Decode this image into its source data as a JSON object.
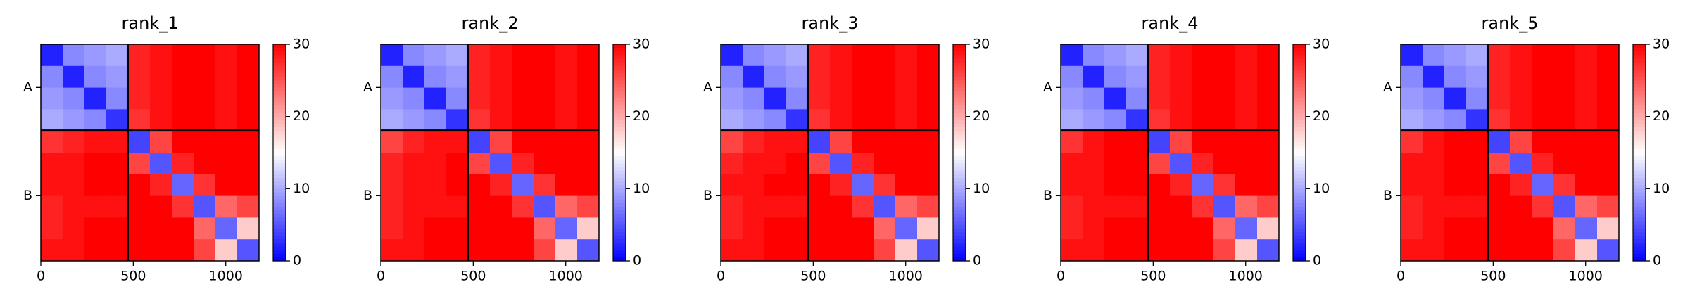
{
  "chart_data": [
    {
      "type": "heatmap",
      "title": "rank_1",
      "bins": [
        0,
        118,
        236,
        354,
        472,
        590,
        708,
        826,
        944,
        1062,
        1180
      ],
      "xlim": [
        0,
        1180
      ],
      "ylim": [
        1180,
        0
      ],
      "xticks": [
        0,
        500,
        1000
      ],
      "yticks": [
        {
          "value": 235,
          "label": "A"
        },
        {
          "value": 825,
          "label": "B"
        }
      ],
      "chain_breaks": [
        470
      ],
      "colormap": "bwr",
      "clim": [
        0,
        30
      ],
      "cticks": [
        0,
        10,
        20,
        30
      ],
      "values": [
        [
          2,
          8,
          9,
          10,
          28,
          29,
          30,
          30,
          29,
          30
        ],
        [
          8,
          2,
          8,
          9,
          28,
          29,
          30,
          30,
          29,
          30
        ],
        [
          9,
          8,
          2,
          8,
          28,
          29,
          30,
          30,
          29,
          30
        ],
        [
          10,
          9,
          8,
          3,
          27,
          29,
          30,
          30,
          29,
          30
        ],
        [
          27,
          28,
          29,
          29,
          4,
          26,
          30,
          30,
          30,
          30
        ],
        [
          29,
          29,
          30,
          30,
          26,
          5,
          28,
          30,
          30,
          30
        ],
        [
          29,
          29,
          30,
          30,
          30,
          28,
          6,
          27,
          30,
          30
        ],
        [
          28,
          29,
          29,
          29,
          30,
          30,
          27,
          5,
          24,
          26
        ],
        [
          28,
          29,
          30,
          30,
          30,
          30,
          30,
          24,
          6,
          18
        ],
        [
          29,
          29,
          30,
          30,
          30,
          30,
          30,
          26,
          18,
          5
        ]
      ]
    },
    {
      "type": "heatmap",
      "title": "rank_2",
      "bins": [
        0,
        118,
        236,
        354,
        472,
        590,
        708,
        826,
        944,
        1062,
        1180
      ],
      "xlim": [
        0,
        1180
      ],
      "ylim": [
        1180,
        0
      ],
      "xticks": [
        0,
        500,
        1000
      ],
      "yticks": [
        {
          "value": 235,
          "label": "A"
        },
        {
          "value": 825,
          "label": "B"
        }
      ],
      "chain_breaks": [
        470
      ],
      "colormap": "bwr",
      "clim": [
        0,
        30
      ],
      "cticks": [
        0,
        10,
        20,
        30
      ],
      "values": [
        [
          2,
          8,
          9,
          10,
          28,
          29,
          30,
          30,
          29,
          30
        ],
        [
          8,
          2,
          8,
          9,
          28,
          29,
          30,
          30,
          29,
          30
        ],
        [
          9,
          8,
          2,
          8,
          28,
          29,
          30,
          30,
          29,
          30
        ],
        [
          10,
          9,
          8,
          3,
          27,
          29,
          30,
          30,
          29,
          30
        ],
        [
          26,
          28,
          29,
          29,
          4,
          26,
          30,
          30,
          30,
          30
        ],
        [
          28,
          29,
          29,
          30,
          26,
          5,
          28,
          30,
          30,
          30
        ],
        [
          28,
          29,
          29,
          30,
          30,
          28,
          6,
          27,
          30,
          30
        ],
        [
          28,
          29,
          29,
          29,
          30,
          30,
          27,
          5,
          24,
          26
        ],
        [
          28,
          29,
          30,
          30,
          30,
          30,
          30,
          24,
          6,
          18
        ],
        [
          29,
          29,
          30,
          30,
          30,
          30,
          30,
          26,
          18,
          5
        ]
      ]
    },
    {
      "type": "heatmap",
      "title": "rank_3",
      "bins": [
        0,
        118,
        236,
        354,
        472,
        590,
        708,
        826,
        944,
        1062,
        1180
      ],
      "xlim": [
        0,
        1180
      ],
      "ylim": [
        1180,
        0
      ],
      "xticks": [
        0,
        500,
        1000
      ],
      "yticks": [
        {
          "value": 235,
          "label": "A"
        },
        {
          "value": 825,
          "label": "B"
        }
      ],
      "chain_breaks": [
        470
      ],
      "colormap": "bwr",
      "clim": [
        0,
        30
      ],
      "cticks": [
        0,
        10,
        20,
        30
      ],
      "values": [
        [
          2,
          8,
          9,
          10,
          28,
          29,
          30,
          30,
          29,
          30
        ],
        [
          8,
          2,
          8,
          9,
          28,
          29,
          30,
          30,
          29,
          30
        ],
        [
          9,
          8,
          2,
          8,
          28,
          29,
          30,
          30,
          29,
          30
        ],
        [
          10,
          9,
          8,
          3,
          27,
          29,
          30,
          30,
          29,
          30
        ],
        [
          26,
          28,
          29,
          29,
          4,
          26,
          30,
          30,
          30,
          30
        ],
        [
          28,
          29,
          29,
          30,
          26,
          5,
          28,
          30,
          30,
          30
        ],
        [
          29,
          29,
          30,
          30,
          30,
          28,
          6,
          27,
          30,
          30
        ],
        [
          28,
          29,
          29,
          29,
          30,
          30,
          27,
          5,
          24,
          26
        ],
        [
          28,
          29,
          30,
          30,
          30,
          30,
          30,
          24,
          6,
          18
        ],
        [
          29,
          29,
          30,
          30,
          30,
          30,
          30,
          26,
          18,
          5
        ]
      ]
    },
    {
      "type": "heatmap",
      "title": "rank_4",
      "bins": [
        0,
        118,
        236,
        354,
        472,
        590,
        708,
        826,
        944,
        1062,
        1180
      ],
      "xlim": [
        0,
        1180
      ],
      "ylim": [
        1180,
        0
      ],
      "xticks": [
        0,
        500,
        1000
      ],
      "yticks": [
        {
          "value": 235,
          "label": "A"
        },
        {
          "value": 825,
          "label": "B"
        }
      ],
      "chain_breaks": [
        470
      ],
      "colormap": "bwr",
      "clim": [
        0,
        30
      ],
      "cticks": [
        0,
        10,
        20,
        30
      ],
      "values": [
        [
          2,
          8,
          9,
          10,
          28,
          29,
          30,
          30,
          29,
          30
        ],
        [
          8,
          2,
          8,
          9,
          28,
          29,
          30,
          30,
          29,
          30
        ],
        [
          9,
          8,
          2,
          8,
          28,
          29,
          30,
          30,
          29,
          30
        ],
        [
          10,
          9,
          8,
          3,
          27,
          29,
          30,
          30,
          29,
          30
        ],
        [
          27,
          29,
          30,
          30,
          4,
          26,
          30,
          30,
          30,
          30
        ],
        [
          29,
          29,
          30,
          30,
          26,
          5,
          28,
          30,
          30,
          30
        ],
        [
          29,
          29,
          30,
          30,
          30,
          28,
          6,
          27,
          30,
          30
        ],
        [
          28,
          29,
          29,
          29,
          30,
          30,
          27,
          5,
          24,
          26
        ],
        [
          28,
          29,
          30,
          30,
          30,
          30,
          30,
          24,
          6,
          18
        ],
        [
          29,
          29,
          30,
          30,
          30,
          30,
          30,
          26,
          18,
          5
        ]
      ]
    },
    {
      "type": "heatmap",
      "title": "rank_5",
      "bins": [
        0,
        118,
        236,
        354,
        472,
        590,
        708,
        826,
        944,
        1062,
        1180
      ],
      "xlim": [
        0,
        1180
      ],
      "ylim": [
        1180,
        0
      ],
      "xticks": [
        0,
        500,
        1000
      ],
      "yticks": [
        {
          "value": 235,
          "label": "A"
        },
        {
          "value": 825,
          "label": "B"
        }
      ],
      "chain_breaks": [
        470
      ],
      "colormap": "bwr",
      "clim": [
        0,
        30
      ],
      "cticks": [
        0,
        10,
        20,
        30
      ],
      "values": [
        [
          2,
          8,
          9,
          10,
          28,
          29,
          30,
          30,
          29,
          30
        ],
        [
          8,
          2,
          8,
          9,
          28,
          29,
          30,
          30,
          29,
          30
        ],
        [
          9,
          8,
          2,
          8,
          28,
          29,
          30,
          30,
          29,
          30
        ],
        [
          10,
          9,
          8,
          3,
          27,
          29,
          30,
          30,
          29,
          30
        ],
        [
          27,
          29,
          30,
          30,
          4,
          26,
          30,
          30,
          30,
          30
        ],
        [
          29,
          29,
          30,
          30,
          26,
          5,
          28,
          30,
          30,
          30
        ],
        [
          29,
          29,
          30,
          30,
          30,
          28,
          6,
          27,
          30,
          30
        ],
        [
          28,
          29,
          29,
          29,
          30,
          30,
          27,
          5,
          24,
          26
        ],
        [
          28,
          29,
          30,
          30,
          30,
          30,
          30,
          24,
          6,
          18
        ],
        [
          29,
          29,
          30,
          30,
          30,
          30,
          30,
          26,
          18,
          5
        ]
      ]
    }
  ]
}
